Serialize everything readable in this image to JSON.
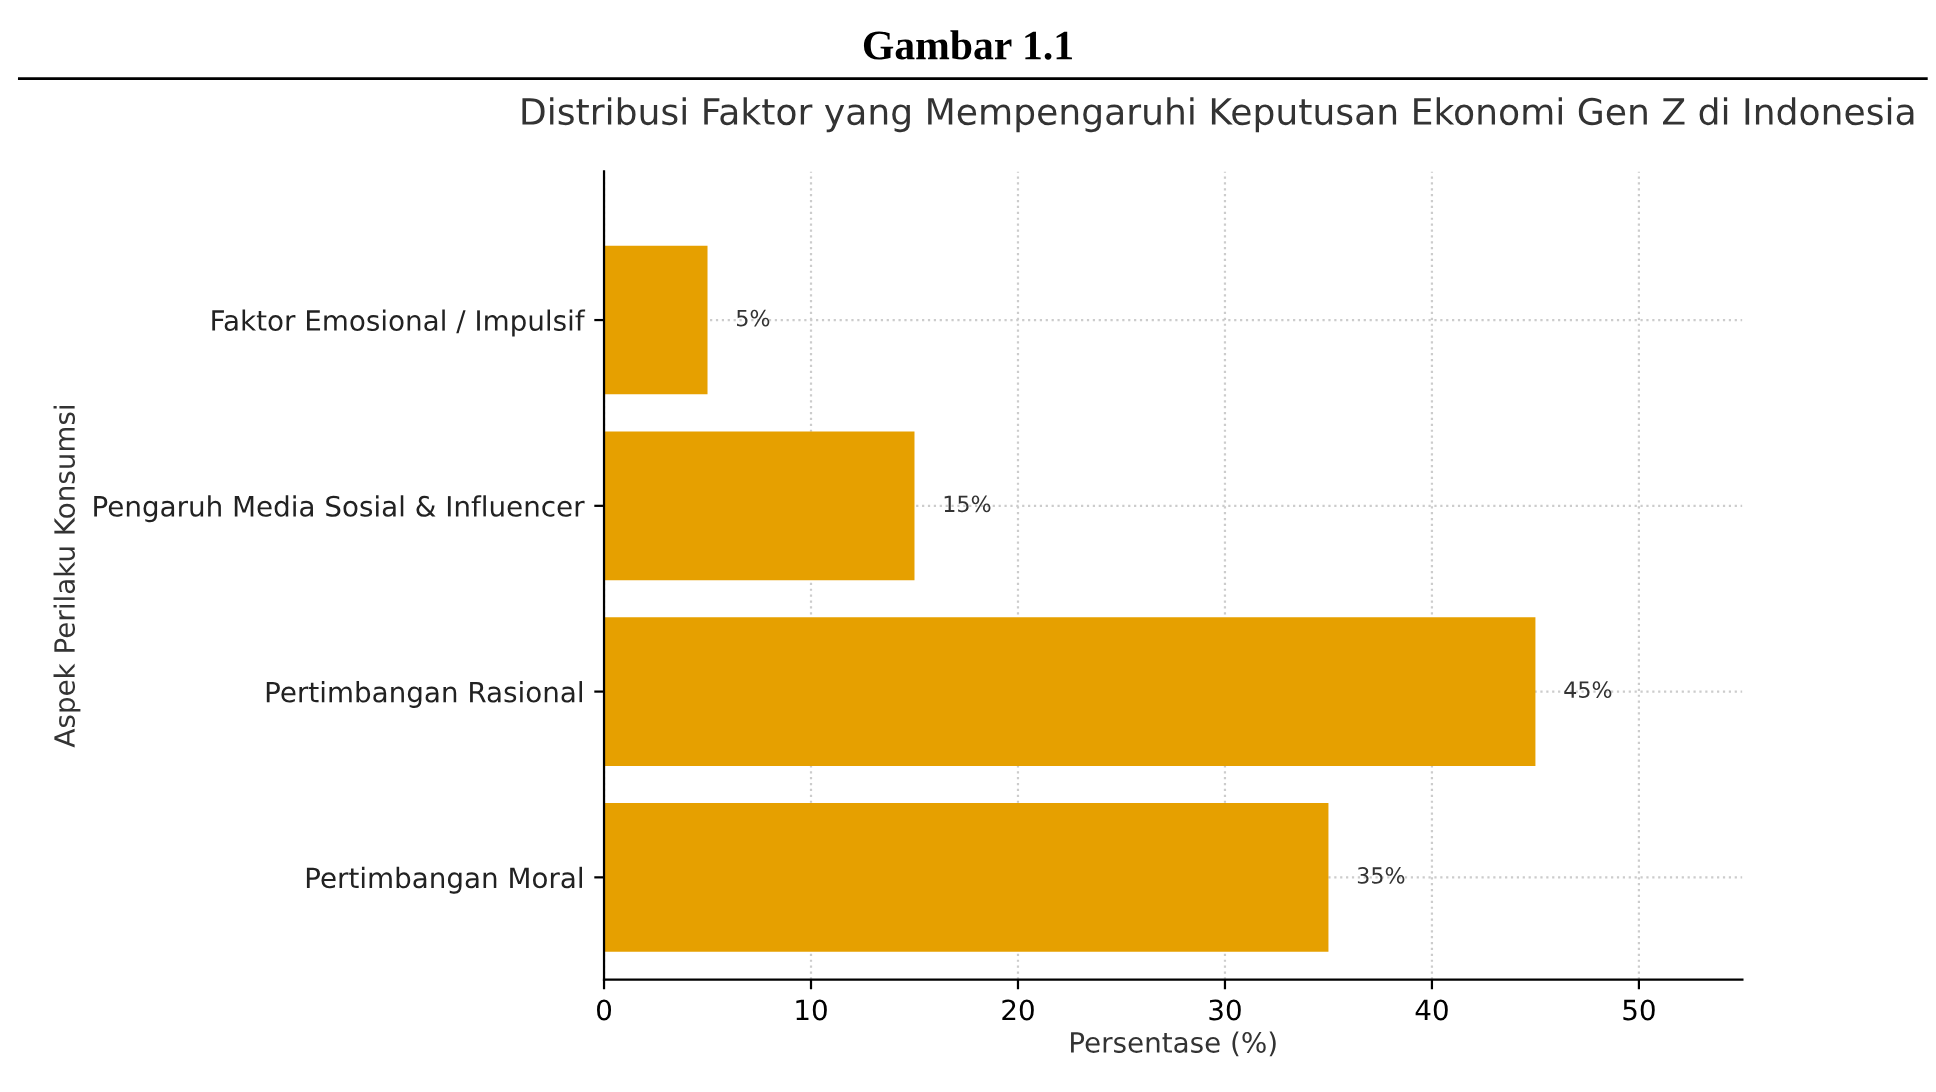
{
  "chart_data": {
    "type": "bar",
    "orientation": "horizontal",
    "title": "Distribusi Faktor yang Mempengaruhi Keputusan Ekonomi Gen Z di Indonesia",
    "annotations": [
      "Gambar 1.1"
    ],
    "xlabel": "Persentase (%)",
    "ylabel": "Aspek Perilaku Konsumsi",
    "categories": [
      "Faktor Emosional / Impulsif",
      "Pengaruh Media Sosial & Influencer",
      "Pertimbangan Rasional",
      "Pertimbangan Moral"
    ],
    "values": [
      5,
      15,
      45,
      35
    ],
    "value_labels": [
      "5%",
      "15%",
      "45%",
      "35%"
    ],
    "color": "#e6a000",
    "xlim": [
      0,
      55
    ],
    "xticks": [
      0,
      10,
      20,
      30,
      40,
      50
    ],
    "grid": true
  }
}
